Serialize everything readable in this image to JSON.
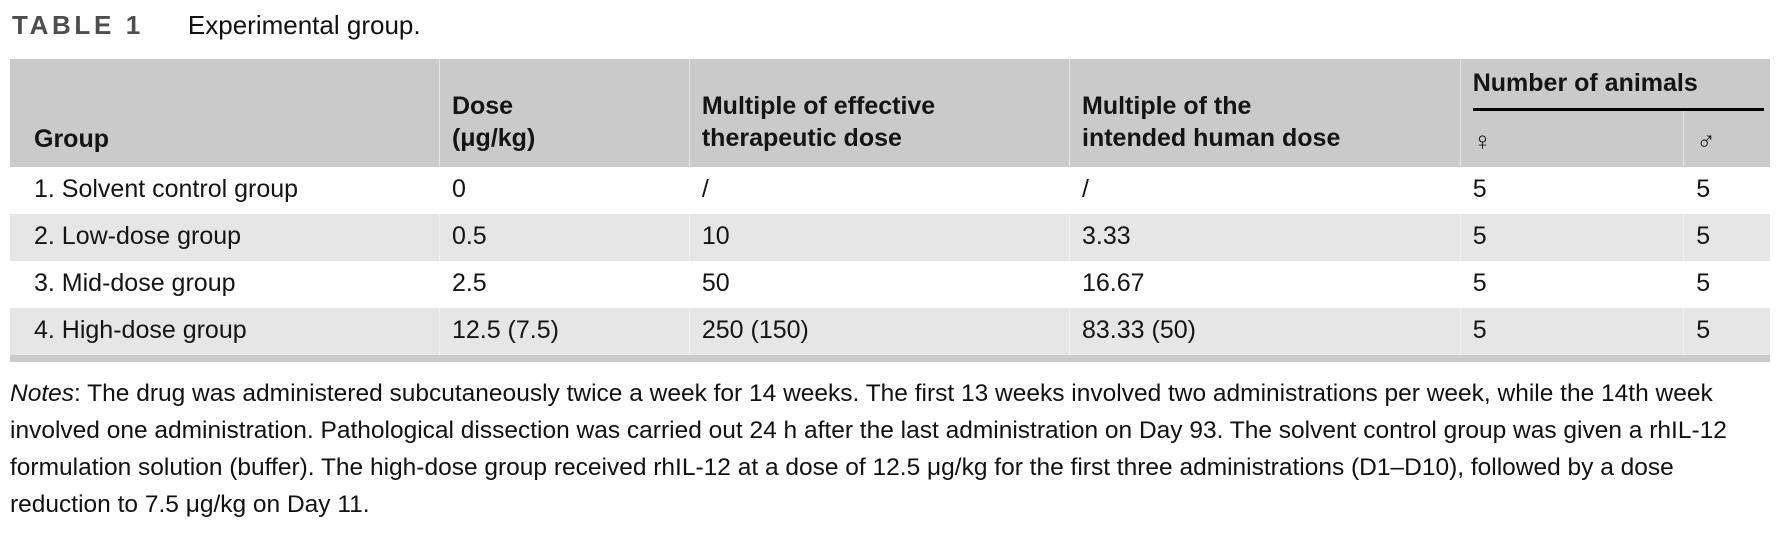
{
  "title": {
    "label": "TABLE 1",
    "caption": "Experimental group."
  },
  "table": {
    "animals_header": "Number of animals",
    "columns": [
      {
        "key": "group",
        "label": "Group"
      },
      {
        "key": "dose",
        "label": "Dose\n(μg/kg)"
      },
      {
        "key": "mult_eff",
        "label": "Multiple of effective\ntherapeutic dose"
      },
      {
        "key": "mult_human",
        "label": "Multiple of the\nintended human dose"
      },
      {
        "key": "female",
        "label": "♀"
      },
      {
        "key": "male",
        "label": "♂"
      }
    ],
    "rows": [
      {
        "group": "1. Solvent control group",
        "dose": "0",
        "mult_eff": "/",
        "mult_human": "/",
        "female": "5",
        "male": "5"
      },
      {
        "group": "2. Low-dose group",
        "dose": "0.5",
        "mult_eff": "10",
        "mult_human": "3.33",
        "female": "5",
        "male": "5"
      },
      {
        "group": "3. Mid-dose group",
        "dose": "2.5",
        "mult_eff": "50",
        "mult_human": "16.67",
        "female": "5",
        "male": "5"
      },
      {
        "group": "4. High-dose group",
        "dose": "12.5 (7.5)",
        "mult_eff": "250 (150)",
        "mult_human": "83.33 (50)",
        "female": "5",
        "male": "5"
      }
    ]
  },
  "notes": {
    "label": "Notes",
    "text": ": The drug was administered subcutaneously twice a week for 14 weeks. The first 13 weeks involved two administrations per week, while the 14th week involved one administration. Pathological dissection was carried out 24 h after the last administration on Day 93. The solvent control group was given a rhIL-12 formulation solution (buffer). The high-dose group received rhIL-12 at a dose of 12.5 μg/kg for the first three administrations (D1–D10), followed by a dose reduction to 7.5 μg/kg on Day 11."
  },
  "colors": {
    "header_bg": "#cacaca",
    "row_alt_bg": "#e6e6e6",
    "rule_color": "#111111",
    "title_label_color": "#4d4d4d"
  }
}
